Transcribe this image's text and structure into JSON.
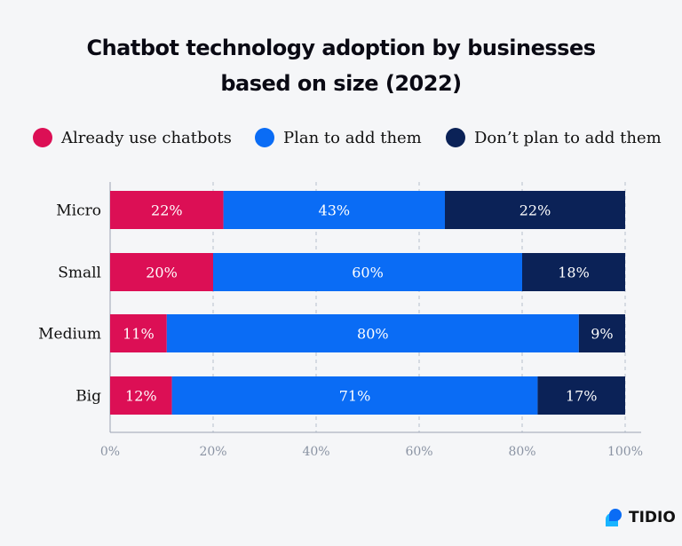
{
  "chart_data": {
    "type": "bar",
    "orientation": "horizontal",
    "stacked": true,
    "title": [
      "Chatbot technology adoption by businesses",
      "based on size (2022)"
    ],
    "categories": [
      "Micro",
      "Small",
      "Medium",
      "Big"
    ],
    "series": [
      {
        "name": "Already use chatbots",
        "color": "#dc0f55",
        "values": [
          22,
          20,
          11,
          12
        ]
      },
      {
        "name": "Plan to add them",
        "color": "#0a6cf5",
        "values": [
          43,
          60,
          80,
          71
        ]
      },
      {
        "name": "Don’t plan to add them",
        "color": "#0b2257",
        "values": [
          22,
          18,
          9,
          17
        ]
      }
    ],
    "xlim": [
      0,
      100
    ],
    "xticks": [
      "0%",
      "20%",
      "40%",
      "60%",
      "80%",
      "100%"
    ],
    "grid": "vertical dashed",
    "legend_position": "top"
  },
  "brand": {
    "name": "TIDIO"
  }
}
